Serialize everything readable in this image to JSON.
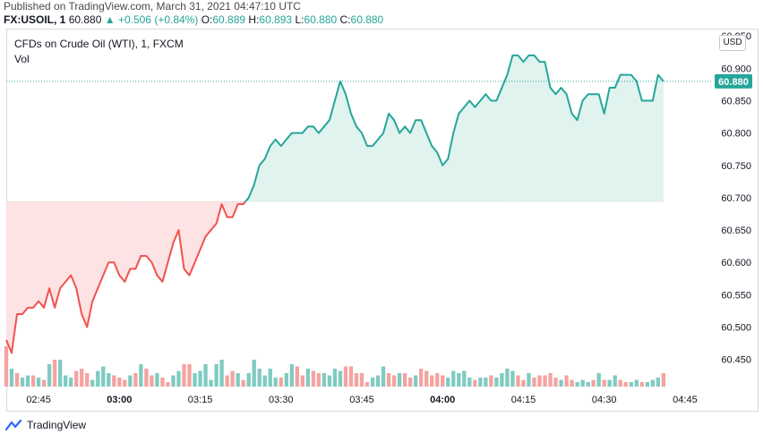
{
  "header": {
    "published": "Published on TradingView.com, March 31, 2021 04:47:10 UTC",
    "symbol": "FX:USOIL, 1",
    "last": "60.880",
    "change": "▲ +0.506 (+0.84%)",
    "o_label": "O:",
    "o_value": "60.889",
    "h_label": "H:",
    "h_value": "60.893",
    "l_label": "L:",
    "l_value": "60.880",
    "c_label": "C:",
    "c_value": "60.880"
  },
  "legend": {
    "title": "CFDs on Crude Oil (WTI), 1, FXCM",
    "vol": "Vol"
  },
  "currency_button": "USD",
  "last_price_label": "60.880",
  "footer": {
    "brand": "TradingView"
  },
  "colors": {
    "up": "#26a69a",
    "down": "#ef5350",
    "up_fill": "#e0f3ef",
    "down_fill": "#fde3e3",
    "vol_up": "#7fcbc1",
    "vol_down": "#f4a3a1",
    "grid": "#f0f3fa",
    "axis_text": "#131722"
  },
  "chart_data": {
    "type": "area",
    "x_ticks": [
      "02:45",
      "03:00",
      "03:15",
      "03:30",
      "03:45",
      "04:00",
      "04:15",
      "04:30",
      "04:45"
    ],
    "x_tick_bold": [
      false,
      true,
      false,
      false,
      false,
      true,
      false,
      false,
      false
    ],
    "x_tick_minutes": [
      6,
      21,
      36,
      51,
      66,
      81,
      96,
      111,
      126
    ],
    "x_range_minutes": [
      0,
      131
    ],
    "y_ticks": [
      "60.950",
      "60.900",
      "60.850",
      "60.800",
      "60.750",
      "60.700",
      "60.650",
      "60.600",
      "60.550",
      "60.500",
      "60.450"
    ],
    "y_range": [
      60.408,
      60.96
    ],
    "baseline": 60.694,
    "last_value": 60.88,
    "series": [
      {
        "values": [
          60.48,
          60.46,
          60.52,
          60.52,
          60.53,
          60.53,
          60.54,
          60.53,
          60.56,
          60.53,
          60.56,
          60.57,
          60.58,
          60.56,
          60.52,
          60.5,
          60.54,
          60.56,
          60.58,
          60.6,
          60.6,
          60.58,
          60.57,
          60.59,
          60.59,
          60.61,
          60.61,
          60.6,
          60.58,
          60.57,
          60.6,
          60.63,
          60.65,
          60.59,
          60.58,
          60.6,
          60.62,
          60.64,
          60.65,
          60.66,
          60.69,
          60.67,
          60.67,
          60.69,
          60.69,
          60.7,
          60.72,
          60.75,
          60.76,
          60.78,
          60.79,
          60.78,
          60.79,
          60.8,
          60.8,
          60.8,
          60.81,
          60.81,
          60.8,
          60.81,
          60.82,
          60.85,
          60.88,
          60.86,
          60.83,
          60.81,
          60.8,
          60.78,
          60.78,
          60.79,
          60.8,
          60.83,
          60.82,
          60.8,
          60.81,
          60.8,
          60.82,
          60.82,
          60.8,
          60.78,
          60.77,
          60.75,
          60.76,
          60.8,
          60.83,
          60.84,
          60.85,
          60.84,
          60.85,
          60.86,
          60.85,
          60.85,
          60.87,
          60.89,
          60.92,
          60.92,
          60.91,
          60.92,
          60.92,
          60.91,
          60.91,
          60.87,
          60.86,
          60.87,
          60.86,
          60.83,
          60.82,
          60.85,
          60.86,
          60.86,
          60.86,
          60.83,
          60.87,
          60.87,
          60.89,
          60.89,
          60.89,
          60.88,
          60.85,
          60.85,
          60.85,
          60.89,
          60.88
        ]
      }
    ],
    "volume": {
      "values": [
        18,
        8,
        6,
        4,
        5,
        5,
        4,
        3,
        10,
        12,
        12,
        5,
        4,
        7,
        8,
        6,
        3,
        7,
        9,
        6,
        5,
        4,
        3,
        5,
        6,
        10,
        8,
        5,
        6,
        4,
        2,
        5,
        7,
        10,
        10,
        6,
        7,
        10,
        3,
        10,
        12,
        5,
        7,
        6,
        3,
        6,
        12,
        8,
        5,
        8,
        4,
        4,
        6,
        10,
        9,
        5,
        8,
        7,
        6,
        6,
        5,
        8,
        7,
        9,
        9,
        6,
        6,
        2,
        4,
        5,
        9,
        6,
        5,
        6,
        6,
        4,
        5,
        8,
        7,
        5,
        6,
        5,
        4,
        7,
        6,
        7,
        4,
        3,
        4,
        4,
        5,
        4,
        6,
        8,
        7,
        5,
        3,
        6,
        4,
        5,
        5,
        6,
        4,
        3,
        5,
        3,
        2,
        3,
        2,
        3,
        6,
        3,
        3,
        5,
        3,
        2,
        2,
        3,
        2,
        2,
        3,
        4,
        6
      ],
      "up": [
        false,
        true,
        false,
        true,
        true,
        false,
        true,
        false,
        true,
        false,
        true,
        true,
        true,
        false,
        false,
        false,
        true,
        true,
        true,
        true,
        false,
        false,
        false,
        true,
        false,
        true,
        false,
        false,
        true,
        false,
        false,
        true,
        true,
        false,
        false,
        true,
        true,
        true,
        true,
        true,
        true,
        false,
        false,
        true,
        false,
        true,
        true,
        true,
        true,
        true,
        true,
        false,
        true,
        true,
        false,
        false,
        true,
        false,
        false,
        true,
        true,
        true,
        true,
        false,
        false,
        false,
        false,
        false,
        true,
        true,
        true,
        false,
        false,
        true,
        false,
        false,
        true,
        false,
        false,
        false,
        false,
        false,
        true,
        true,
        true,
        true,
        true,
        false,
        true,
        true,
        false,
        true,
        true,
        true,
        true,
        false,
        false,
        true,
        false,
        false,
        false,
        false,
        false,
        true,
        false,
        false,
        true,
        true,
        true,
        false,
        true,
        false,
        true,
        true,
        false,
        false,
        true,
        true,
        false,
        true,
        true,
        true,
        false
      ],
      "max": 40
    }
  }
}
